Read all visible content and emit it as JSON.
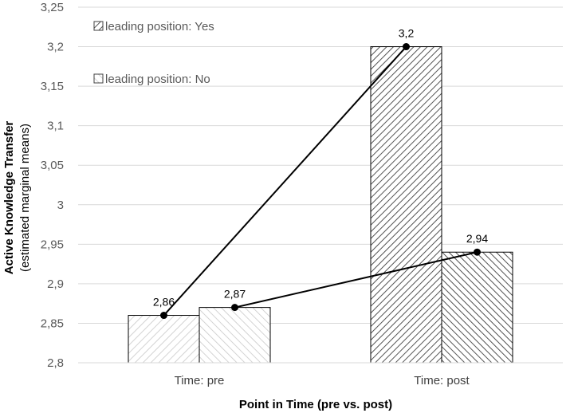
{
  "chart_data": {
    "type": "bar",
    "title": "",
    "xlabel": "Point in Time (pre vs. post)",
    "ylabel": "Active Knowledge Transfer",
    "ylabel_sub": "(estimated marginal means)",
    "categories": [
      "Time: pre",
      "Time: post"
    ],
    "ylim": [
      2.8,
      3.25
    ],
    "yticks": [
      2.8,
      2.85,
      2.9,
      2.95,
      3.0,
      3.05,
      3.1,
      3.15,
      3.2,
      3.25
    ],
    "ytick_labels": [
      "2,8",
      "2,85",
      "2,9",
      "2,95",
      "3",
      "3,05",
      "3,1",
      "3,15",
      "3,2",
      "3,25"
    ],
    "grid": true,
    "legend_position": "top-left",
    "series": [
      {
        "name": "leading position: Yes",
        "values": [
          2.86,
          3.2
        ],
        "labels": [
          "2,86",
          "3,2"
        ],
        "pattern": "forward-hatch"
      },
      {
        "name": "leading position: No",
        "values": [
          2.87,
          2.94
        ],
        "labels": [
          "2,87",
          "2,94"
        ],
        "pattern": "back-hatch"
      }
    ],
    "colors": {
      "pre_hatch": "#c8c8c8",
      "post_hatch": "#404040",
      "bar_outline": "#000000",
      "line": "#000000",
      "grid": "#d9d9d9"
    }
  }
}
